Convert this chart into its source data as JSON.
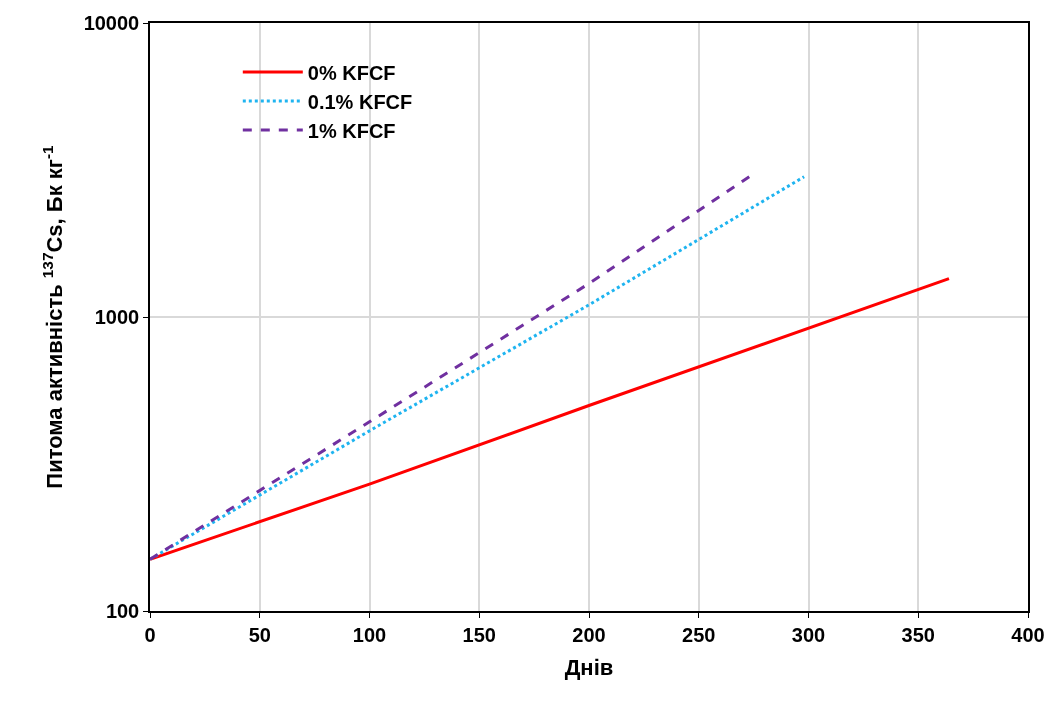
{
  "chart_data": {
    "type": "line",
    "xlabel": "Днів",
    "ylabel": "Питома активність $^{137}$Cs, Бк кг$^{-1}$",
    "log": "y",
    "xlim": [
      0,
      400
    ],
    "xticks": [
      0,
      50,
      100,
      150,
      200,
      250,
      300,
      350,
      400
    ],
    "ylim": [
      100,
      10000
    ],
    "yticks": [
      100,
      1000,
      10000
    ],
    "grid": true,
    "legend": "top left",
    "series": [
      {
        "name": "0% KFCF",
        "color": "#ff0000",
        "line_style": "solid",
        "x": [
          0,
          100,
          200,
          364
        ],
        "values": [
          150,
          270,
          500,
          1350
        ]
      },
      {
        "name": "0.1% KFCF",
        "color": "#1fb4f0",
        "line_style": "dotted",
        "x": [
          0,
          100,
          200,
          298
        ],
        "values": [
          150,
          410,
          1100,
          3000
        ]
      },
      {
        "name": "1% KFCF",
        "color": "#7030a0",
        "line_style": "dashed",
        "x": [
          0,
          100,
          200,
          273
        ],
        "values": [
          150,
          440,
          1300,
          3000
        ]
      }
    ]
  }
}
